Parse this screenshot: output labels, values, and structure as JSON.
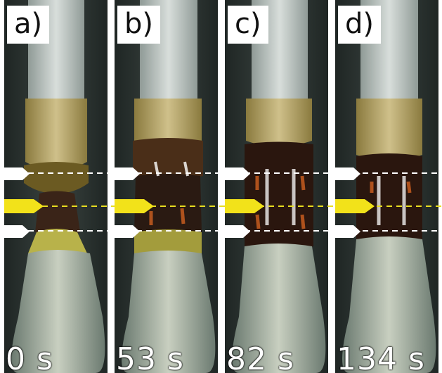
{
  "panels": [
    {
      "label": "a)",
      "time": "0 s"
    },
    {
      "label": "b)",
      "time": "53 s"
    },
    {
      "label": "c)",
      "time": "82 s"
    },
    {
      "label": "d)",
      "time": "134 s"
    }
  ],
  "colors": {
    "arrow_white": "#ffffff",
    "arrow_yellow": "#f2e21a",
    "dashed_white": "#ffffff",
    "dashed_yellow": "#e8dd20",
    "background": "#2b302e"
  }
}
